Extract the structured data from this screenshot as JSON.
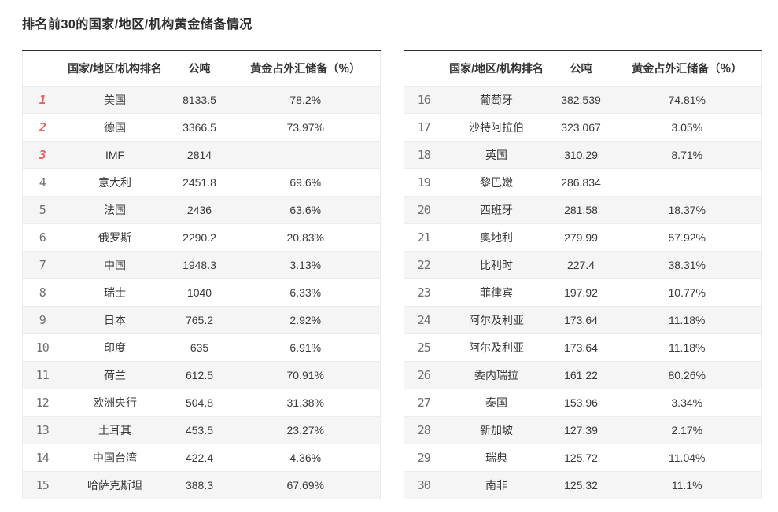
{
  "page_title": "排名前30的国家/地区/机构黄金储备情况",
  "colors": {
    "top_rank_accent": "#e86161",
    "rank_number": "#6f6f6f",
    "body_text": "#333333",
    "alt_row_bg": "#f5f5f5",
    "table_top_border": "#2f2f2f",
    "row_divider": "#ececec"
  },
  "chart_data": {
    "type": "table",
    "title": "排名前30的国家/地区/机构黄金储备情况",
    "headers": [
      "国家/地区/机构排名",
      "公吨",
      "黄金占外汇储备（％）"
    ],
    "highlighted_top_ranks": 3,
    "tables": [
      {
        "rows": [
          {
            "rank": "1",
            "name": "美国",
            "tonnes": "8133.5",
            "pct": "78.2%"
          },
          {
            "rank": "2",
            "name": "德国",
            "tonnes": "3366.5",
            "pct": "73.97%"
          },
          {
            "rank": "3",
            "name": "IMF",
            "tonnes": "2814",
            "pct": ""
          },
          {
            "rank": "4",
            "name": "意大利",
            "tonnes": "2451.8",
            "pct": "69.6%"
          },
          {
            "rank": "5",
            "name": "法国",
            "tonnes": "2436",
            "pct": "63.6%"
          },
          {
            "rank": "6",
            "name": "俄罗斯",
            "tonnes": "2290.2",
            "pct": "20.83%"
          },
          {
            "rank": "7",
            "name": "中国",
            "tonnes": "1948.3",
            "pct": "3.13%"
          },
          {
            "rank": "8",
            "name": "瑞士",
            "tonnes": "1040",
            "pct": "6.33%"
          },
          {
            "rank": "9",
            "name": "日本",
            "tonnes": "765.2",
            "pct": "2.92%"
          },
          {
            "rank": "10",
            "name": "印度",
            "tonnes": "635",
            "pct": "6.91%"
          },
          {
            "rank": "11",
            "name": "荷兰",
            "tonnes": "612.5",
            "pct": "70.91%"
          },
          {
            "rank": "12",
            "name": "欧洲央行",
            "tonnes": "504.8",
            "pct": "31.38%"
          },
          {
            "rank": "13",
            "name": "土耳其",
            "tonnes": "453.5",
            "pct": "23.27%"
          },
          {
            "rank": "14",
            "name": "中国台湾",
            "tonnes": "422.4",
            "pct": "4.36%"
          },
          {
            "rank": "15",
            "name": "哈萨克斯坦",
            "tonnes": "388.3",
            "pct": "67.69%"
          }
        ]
      },
      {
        "rows": [
          {
            "rank": "16",
            "name": "葡萄牙",
            "tonnes": "382.539",
            "pct": "74.81%"
          },
          {
            "rank": "17",
            "name": "沙特阿拉伯",
            "tonnes": "323.067",
            "pct": "3.05%"
          },
          {
            "rank": "18",
            "name": "英国",
            "tonnes": "310.29",
            "pct": "8.71%"
          },
          {
            "rank": "19",
            "name": "黎巴嫩",
            "tonnes": "286.834",
            "pct": ""
          },
          {
            "rank": "20",
            "name": "西班牙",
            "tonnes": "281.58",
            "pct": "18.37%"
          },
          {
            "rank": "21",
            "name": "奥地利",
            "tonnes": "279.99",
            "pct": "57.92%"
          },
          {
            "rank": "22",
            "name": "比利时",
            "tonnes": "227.4",
            "pct": "38.31%"
          },
          {
            "rank": "23",
            "name": "菲律宾",
            "tonnes": "197.92",
            "pct": "10.77%"
          },
          {
            "rank": "24",
            "name": "阿尔及利亚",
            "tonnes": "173.64",
            "pct": "11.18%"
          },
          {
            "rank": "25",
            "name": "阿尔及利亚",
            "tonnes": "173.64",
            "pct": "11.18%"
          },
          {
            "rank": "26",
            "name": "委内瑞拉",
            "tonnes": "161.22",
            "pct": "80.26%"
          },
          {
            "rank": "27",
            "name": "泰国",
            "tonnes": "153.96",
            "pct": "3.34%"
          },
          {
            "rank": "28",
            "name": "新加坡",
            "tonnes": "127.39",
            "pct": "2.17%"
          },
          {
            "rank": "29",
            "name": "瑞典",
            "tonnes": "125.72",
            "pct": "11.04%"
          },
          {
            "rank": "30",
            "name": "南非",
            "tonnes": "125.32",
            "pct": "11.1%"
          }
        ]
      }
    ]
  }
}
